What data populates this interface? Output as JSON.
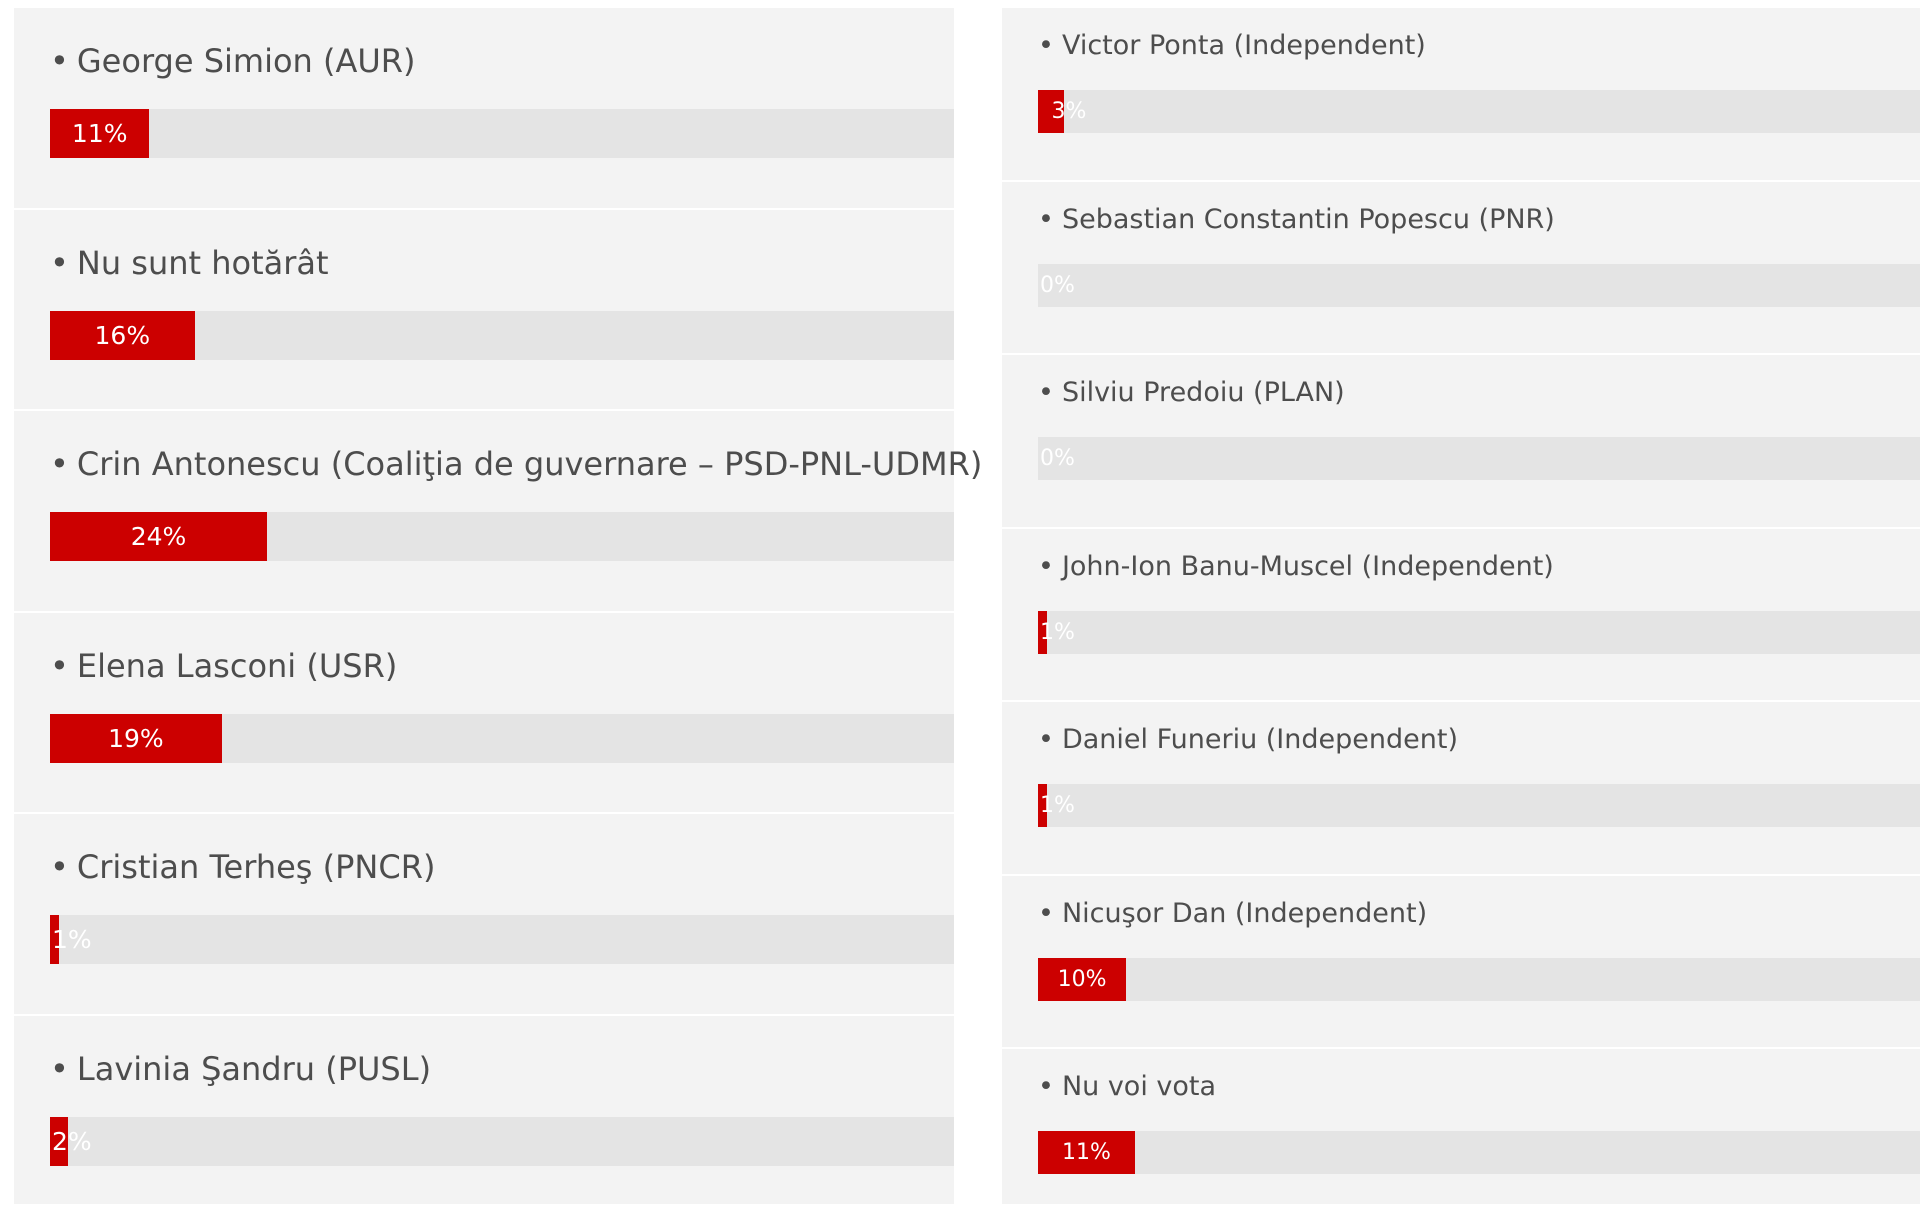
{
  "colors": {
    "bar_fill": "#cc0000",
    "bar_track": "#e4e4e4",
    "panel_bg": "#f3f3f3",
    "label_text": "#4d4d4d",
    "value_text": "#ffffff"
  },
  "chart_data": [
    {
      "type": "bar",
      "orientation": "horizontal",
      "xlim": [
        0,
        100
      ],
      "unit": "%",
      "categories": [
        "George Simion (AUR)",
        "Nu sunt hotărât",
        "Crin Antonescu (Coaliţia de guvernare – PSD-PNL-UDMR)",
        "Elena Lasconi (USR)",
        "Cristian Terheş (PNCR)",
        "Lavinia Şandru (PUSL)"
      ],
      "values": [
        11,
        16,
        24,
        19,
        1,
        2
      ],
      "value_labels": [
        "11%",
        "16%",
        "24%",
        "19%",
        "1%",
        "2%"
      ]
    },
    {
      "type": "bar",
      "orientation": "horizontal",
      "xlim": [
        0,
        100
      ],
      "unit": "%",
      "categories": [
        "Victor Ponta (Independent)",
        "Sebastian Constantin Popescu (PNR)",
        "Silviu Predoiu (PLAN)",
        "John-Ion Banu-Muscel (Independent)",
        "Daniel Funeriu (Independent)",
        "Nicuşor Dan (Independent)",
        "Nu voi vota"
      ],
      "values": [
        3,
        0,
        0,
        1,
        1,
        10,
        11
      ],
      "value_labels": [
        "3%",
        "0%",
        "0%",
        "1%",
        "1%",
        "10%",
        "11%"
      ]
    }
  ]
}
